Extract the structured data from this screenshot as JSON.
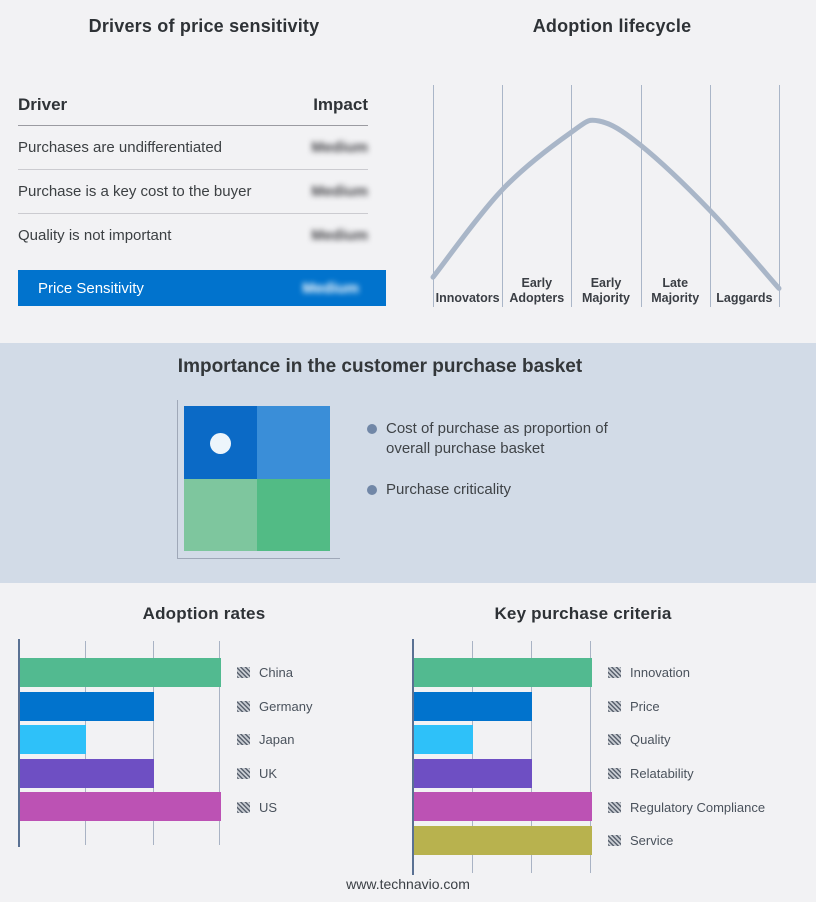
{
  "drivers_panel": {
    "title": "Drivers of price sensitivity",
    "table": {
      "columns": {
        "driver": "Driver",
        "impact": "Impact"
      },
      "rows": [
        {
          "driver": "Purchases are undifferentiated",
          "impact": "Medium"
        },
        {
          "driver": "Purchase is a key cost to the buyer",
          "impact": "Medium"
        },
        {
          "driver": "Quality is not important",
          "impact": "Medium"
        }
      ],
      "highlight_row": {
        "driver": "Price Sensitivity",
        "impact": "Medium"
      },
      "highlight_color": "#0173cd",
      "impact_values_blurred": true
    }
  },
  "basket_panel": {
    "title": "Importance in the customer purchase basket",
    "background": "#d2dbe7",
    "bullets": [
      "Cost of purchase as proportion of overall purchase basket",
      "Purchase criticality"
    ],
    "bullet_color": "#7187a7",
    "quadrant": {
      "top_left": "#0b6ac6",
      "top_right": "#3a8ed8",
      "bottom_left": "#7ec69e",
      "bottom_right": "#52bb85",
      "dot_color": "#edf5fb"
    }
  },
  "footer": {
    "url": "www.technavio.com"
  },
  "chart_data": [
    {
      "type": "line",
      "title": "Adoption lifecycle",
      "x_categories": [
        "Innovators",
        "Early Adopters",
        "Early Majority",
        "Late Majority",
        "Laggards"
      ],
      "shape": "bell curve peaking in Early Majority",
      "curve_points": [
        [
          0,
          0.16
        ],
        [
          20,
          0.63
        ],
        [
          40,
          0.94
        ],
        [
          48,
          1.0
        ],
        [
          60,
          0.87
        ],
        [
          80,
          0.52
        ],
        [
          100,
          0.1
        ]
      ],
      "curve_color": "#a9b6c8",
      "gridline_color": "#aab6c8",
      "grid": true,
      "legend_position": "none"
    },
    {
      "type": "bar",
      "orientation": "horizontal",
      "title": "Adoption rates",
      "categories": [
        "China",
        "Germany",
        "Japan",
        "UK",
        "US"
      ],
      "values": [
        3,
        2,
        1,
        2,
        3
      ],
      "xlim": [
        0,
        3
      ],
      "colors": [
        "#52ba90",
        "#0173cd",
        "#2ec1f9",
        "#6e4fc3",
        "#bc52b4"
      ],
      "grid": true,
      "legend_position": "right"
    },
    {
      "type": "bar",
      "orientation": "horizontal",
      "title": "Key purchase criteria",
      "categories": [
        "Innovation",
        "Price",
        "Quality",
        "Relatability",
        "Regulatory Compliance",
        "Service"
      ],
      "values": [
        3,
        2,
        1,
        2,
        3,
        3
      ],
      "xlim": [
        0,
        3
      ],
      "colors": [
        "#52ba90",
        "#0173cd",
        "#2ec1f9",
        "#6e4fc3",
        "#bc52b4",
        "#b8b24e"
      ],
      "grid": true,
      "legend_position": "right"
    }
  ]
}
